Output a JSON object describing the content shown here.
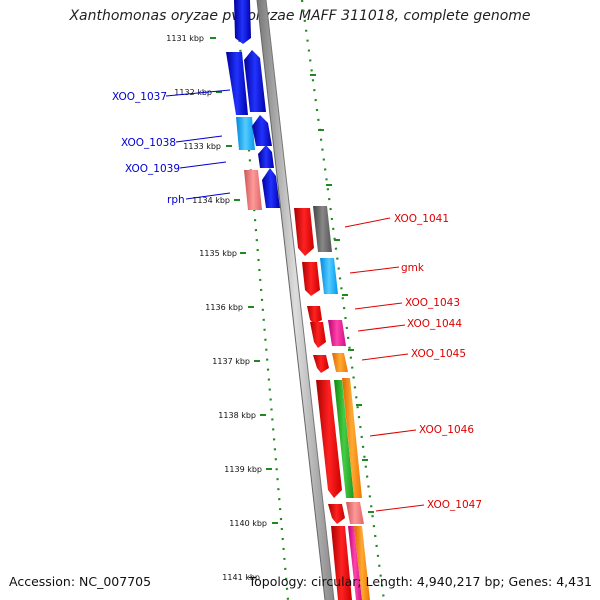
{
  "title": "Xanthomonas oryzae pv. oryzae MAFF 311018, complete genome",
  "accession": "Accession: NC_007705",
  "topology": "Topology: circular; Length: 4,940,217 bp; Genes: 4,431",
  "ticks": [
    "1131 kbp",
    "1132 kbp",
    "1133 kbp",
    "1134 kbp",
    "1135 kbp",
    "1136 kbp",
    "1137 kbp",
    "1138 kbp",
    "1139 kbp",
    "1140 kbp",
    "1141 kbp"
  ],
  "colors": {
    "blue": "#0000dd",
    "cyan": "#18aaff",
    "red": "#ee0000",
    "pink": "#ee7777",
    "gray": "#666666",
    "magenta": "#ee1188",
    "orange": "#ff8800",
    "green": "#22aa22",
    "label_blue": "#0000cc",
    "label_red": "#dd0000"
  },
  "genes_left": [
    {
      "name": "XOO_1037"
    },
    {
      "name": "XOO_1038"
    },
    {
      "name": "XOO_1039"
    },
    {
      "name": "rph"
    }
  ],
  "genes_right": [
    {
      "name": "XOO_1041"
    },
    {
      "name": "gmk"
    },
    {
      "name": "XOO_1043"
    },
    {
      "name": "XOO_1044"
    },
    {
      "name": "XOO_1045"
    },
    {
      "name": "XOO_1046"
    },
    {
      "name": "XOO_1047"
    }
  ]
}
